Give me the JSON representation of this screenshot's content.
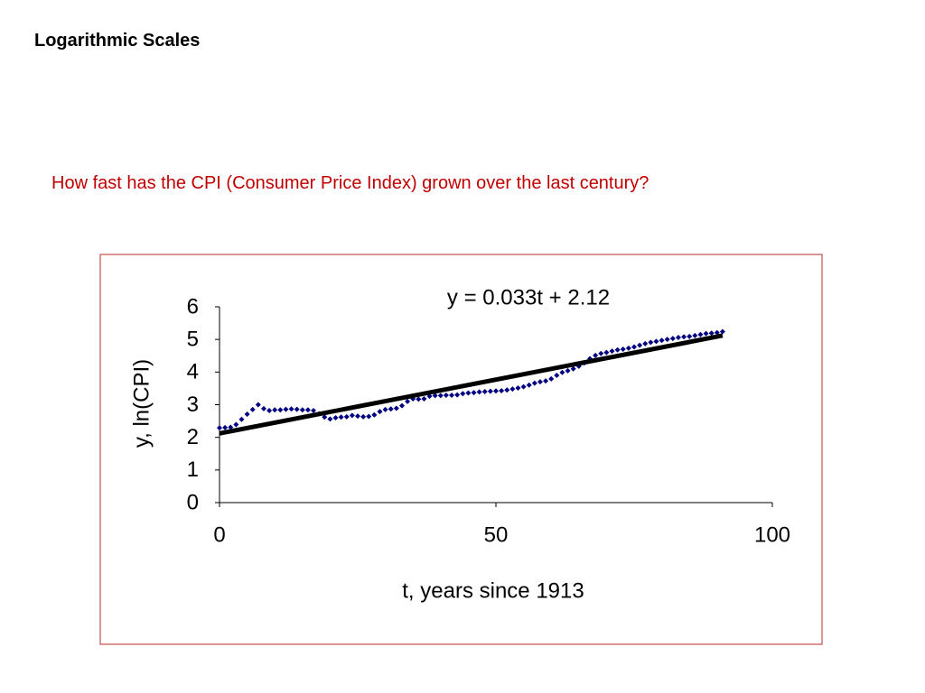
{
  "slide": {
    "title": "Logarithmic Scales",
    "question": "How fast has the CPI (Consumer Price Index) grown over the last century?"
  },
  "chart_data": {
    "type": "scatter",
    "annotation": "y = 0.033t + 2.12",
    "x_label": "t, years since 1913",
    "y_label": "y, ln(CPI)",
    "xlim": [
      0,
      100
    ],
    "xticks": [
      0,
      50,
      100
    ],
    "ylim": [
      0,
      6
    ],
    "yticks": [
      0,
      1,
      2,
      3,
      4,
      5,
      6
    ],
    "series": [
      {
        "style": "markers",
        "color": "#000080",
        "x": [
          0,
          1,
          2,
          3,
          4,
          5,
          6,
          7,
          8,
          9,
          10,
          11,
          12,
          13,
          14,
          15,
          16,
          17,
          18,
          19,
          20,
          21,
          22,
          23,
          24,
          25,
          26,
          27,
          28,
          29,
          30,
          31,
          32,
          33,
          34,
          35,
          36,
          37,
          38,
          39,
          40,
          41,
          42,
          43,
          44,
          45,
          46,
          47,
          48,
          49,
          50,
          51,
          52,
          53,
          54,
          55,
          56,
          57,
          58,
          59,
          60,
          61,
          62,
          63,
          64,
          65,
          66,
          67,
          68,
          69,
          70,
          71,
          72,
          73,
          74,
          75,
          76,
          77,
          78,
          79,
          80,
          81,
          82,
          83,
          84,
          85,
          86,
          87,
          88,
          89,
          90,
          91
        ],
        "values": [
          2.29,
          2.3,
          2.31,
          2.39,
          2.55,
          2.71,
          2.85,
          3.0,
          2.88,
          2.82,
          2.84,
          2.84,
          2.86,
          2.87,
          2.86,
          2.84,
          2.84,
          2.82,
          2.72,
          2.62,
          2.56,
          2.6,
          2.62,
          2.63,
          2.67,
          2.65,
          2.63,
          2.64,
          2.69,
          2.79,
          2.85,
          2.87,
          2.89,
          2.97,
          3.1,
          3.18,
          3.17,
          3.18,
          3.26,
          3.28,
          3.28,
          3.29,
          3.29,
          3.3,
          3.34,
          3.36,
          3.37,
          3.39,
          3.4,
          3.41,
          3.42,
          3.43,
          3.45,
          3.48,
          3.51,
          3.55,
          3.6,
          3.66,
          3.7,
          3.73,
          3.79,
          3.9,
          3.99,
          4.04,
          4.1,
          4.18,
          4.28,
          4.41,
          4.51,
          4.57,
          4.6,
          4.64,
          4.68,
          4.7,
          4.73,
          4.77,
          4.82,
          4.87,
          4.91,
          4.94,
          4.97,
          5.0,
          5.03,
          5.06,
          5.08,
          5.09,
          5.12,
          5.15,
          5.18,
          5.19,
          5.21,
          5.24
        ]
      },
      {
        "style": "line",
        "color": "#000000",
        "x": [
          0,
          91
        ],
        "values": [
          2.12,
          5.12
        ]
      }
    ]
  }
}
